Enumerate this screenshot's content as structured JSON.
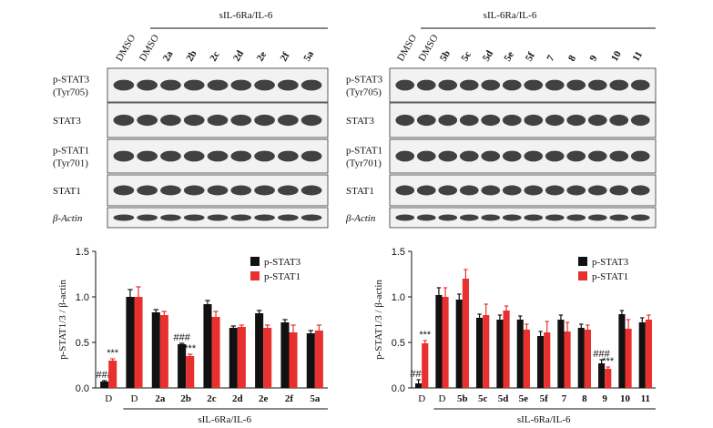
{
  "blots": [
    {
      "header": "sIL-6Ra/IL-6",
      "lanes": [
        "DMSO",
        "DMSO",
        "2a",
        "2b",
        "2c",
        "2d",
        "2e",
        "2f",
        "5a"
      ],
      "rows": [
        [
          "p-STAT3",
          "(Tyr705)"
        ],
        [
          "STAT3"
        ],
        [
          "p-STAT1",
          "(Tyr701)"
        ],
        [
          "STAT1"
        ],
        [
          "β-Actin"
        ]
      ]
    },
    {
      "header": "sIL-6Ra/IL-6",
      "lanes": [
        "DMSO",
        "DMSO",
        "5b",
        "5c",
        "5d",
        "5e",
        "5f",
        "7",
        "8",
        "9",
        "10",
        "11"
      ],
      "rows": [
        [
          "p-STAT3",
          "(Tyr705)"
        ],
        [
          "STAT3"
        ],
        [
          "p-STAT1",
          "(Tyr701)"
        ],
        [
          "STAT1"
        ],
        [
          "β-Actin"
        ]
      ]
    }
  ],
  "chart_data": [
    {
      "type": "bar",
      "ylabel": "p-STAT1/3 / β-actin",
      "xlabel": "sIL-6Ra/IL-6",
      "categories": [
        "D",
        "D",
        "2a",
        "2b",
        "2c",
        "2d",
        "2e",
        "2f",
        "5a"
      ],
      "ylim": [
        0,
        1.5
      ],
      "yticks": [
        {
          "value": 0,
          "label": "0.0"
        },
        {
          "value": 0.5,
          "label": "0.5"
        },
        {
          "value": 1,
          "label": "1.0"
        },
        {
          "value": 1.5,
          "label": "1.5"
        }
      ],
      "legend": "upper right",
      "series": [
        {
          "name": "p-STAT3",
          "color": "#111111",
          "values": [
            0.07,
            1.0,
            0.83,
            0.48,
            0.92,
            0.66,
            0.82,
            0.72,
            0.6
          ],
          "errors": [
            0.01,
            0.08,
            0.03,
            0.01,
            0.04,
            0.02,
            0.03,
            0.03,
            0.03
          ],
          "annotations": [
            "###",
            null,
            null,
            "###",
            null,
            null,
            null,
            null,
            null
          ]
        },
        {
          "name": "p-STAT1",
          "color": "#e8312f",
          "values": [
            0.3,
            1.0,
            0.8,
            0.35,
            0.78,
            0.67,
            0.66,
            0.61,
            0.63
          ],
          "errors": [
            0.02,
            0.11,
            0.04,
            0.02,
            0.06,
            0.02,
            0.03,
            0.08,
            0.06
          ],
          "annotations": [
            "***",
            null,
            null,
            "***",
            null,
            null,
            null,
            null,
            null
          ]
        }
      ]
    },
    {
      "type": "bar",
      "ylabel": "p-STAT1/3 / β-actin",
      "xlabel": "sIL-6Ra/IL-6",
      "categories": [
        "D",
        "D",
        "5b",
        "5c",
        "5d",
        "5e",
        "5f",
        "7",
        "8",
        "9",
        "10",
        "11"
      ],
      "ylim": [
        0,
        1.5
      ],
      "yticks": [
        {
          "value": 0,
          "label": "0.0"
        },
        {
          "value": 0.5,
          "label": "0.5"
        },
        {
          "value": 1,
          "label": "1.0"
        },
        {
          "value": 1.5,
          "label": "1.5"
        }
      ],
      "legend": "upper right",
      "series": [
        {
          "name": "p-STAT3",
          "color": "#111111",
          "values": [
            0.05,
            1.02,
            0.97,
            0.77,
            0.75,
            0.75,
            0.57,
            0.75,
            0.66,
            0.27,
            0.81,
            0.72
          ],
          "errors": [
            0.04,
            0.08,
            0.06,
            0.04,
            0.05,
            0.04,
            0.05,
            0.05,
            0.04,
            0.04,
            0.04,
            0.05
          ],
          "annotations": [
            "###",
            null,
            null,
            null,
            null,
            null,
            null,
            null,
            null,
            "###",
            null,
            null
          ]
        },
        {
          "name": "p-STAT1",
          "color": "#e8312f",
          "values": [
            0.49,
            1.0,
            1.2,
            0.8,
            0.85,
            0.64,
            0.61,
            0.62,
            0.64,
            0.21,
            0.65,
            0.75
          ],
          "errors": [
            0.03,
            0.1,
            0.1,
            0.12,
            0.05,
            0.06,
            0.12,
            0.1,
            0.05,
            0.02,
            0.1,
            0.05
          ],
          "annotations": [
            "***",
            null,
            null,
            null,
            null,
            null,
            null,
            null,
            null,
            "***",
            null,
            null
          ]
        }
      ]
    }
  ]
}
